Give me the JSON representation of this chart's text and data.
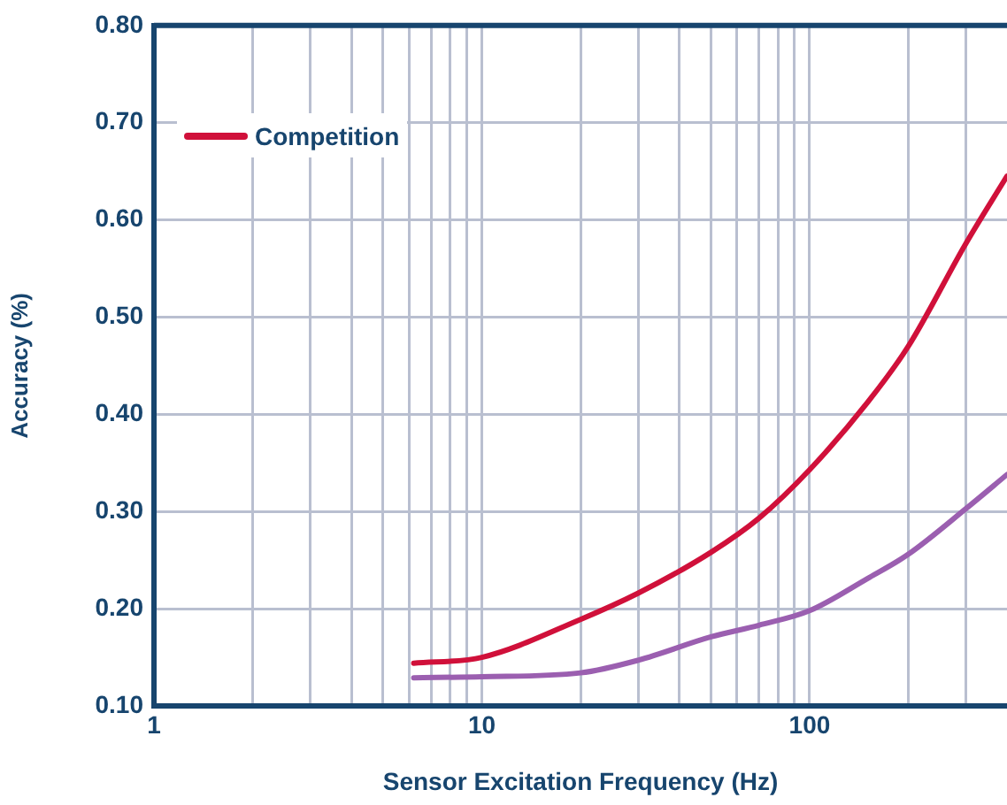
{
  "chart_data": {
    "type": "line",
    "xlabel": "Sensor Excitation Frequency (Hz)",
    "ylabel": "Accuracy (%)",
    "log": "x",
    "grid": true,
    "legend": "top left",
    "marker": "none",
    "line_style": "solid",
    "xlim": [
      1,
      400
    ],
    "ylim": [
      0.1,
      0.8
    ],
    "xticks": [
      1,
      {
        "value": 2,
        "label": null
      },
      {
        "value": 3,
        "label": null
      },
      {
        "value": 4,
        "label": null
      },
      {
        "value": 5,
        "label": null
      },
      {
        "value": 6,
        "label": null
      },
      {
        "value": 7,
        "label": null
      },
      {
        "value": 8,
        "label": null
      },
      {
        "value": 9,
        "label": null
      },
      10,
      {
        "value": 20,
        "label": null
      },
      {
        "value": 30,
        "label": null
      },
      {
        "value": 40,
        "label": null
      },
      {
        "value": 50,
        "label": null
      },
      {
        "value": 60,
        "label": null
      },
      {
        "value": 70,
        "label": null
      },
      {
        "value": 80,
        "label": null
      },
      {
        "value": 90,
        "label": null
      },
      100,
      {
        "value": 200,
        "label": null
      },
      {
        "value": 300,
        "label": null
      }
    ],
    "yticks": [
      {
        "value": 0.1,
        "label": "0.10"
      },
      {
        "value": 0.2,
        "label": "0.20"
      },
      {
        "value": 0.3,
        "label": "0.30"
      },
      {
        "value": 0.4,
        "label": "0.40"
      },
      {
        "value": 0.5,
        "label": "0.50"
      },
      {
        "value": 0.6,
        "label": "0.60"
      },
      {
        "value": 0.7,
        "label": "0.70"
      },
      {
        "value": 0.8,
        "label": "0.80"
      }
    ],
    "x": [
      6.2,
      10,
      20,
      30,
      50,
      70,
      100,
      150,
      200,
      300,
      400
    ],
    "series": [
      {
        "color": "#9b5fb0",
        "values": [
          0.129,
          0.13,
          0.134,
          0.147,
          0.171,
          0.183,
          0.198,
          0.231,
          0.256,
          0.303,
          0.338
        ]
      },
      {
        "name": "Competition",
        "color": "#d0103a",
        "values": [
          0.144,
          0.15,
          0.189,
          0.216,
          0.258,
          0.293,
          0.343,
          0.412,
          0.47,
          0.576,
          0.645
        ]
      }
    ]
  }
}
